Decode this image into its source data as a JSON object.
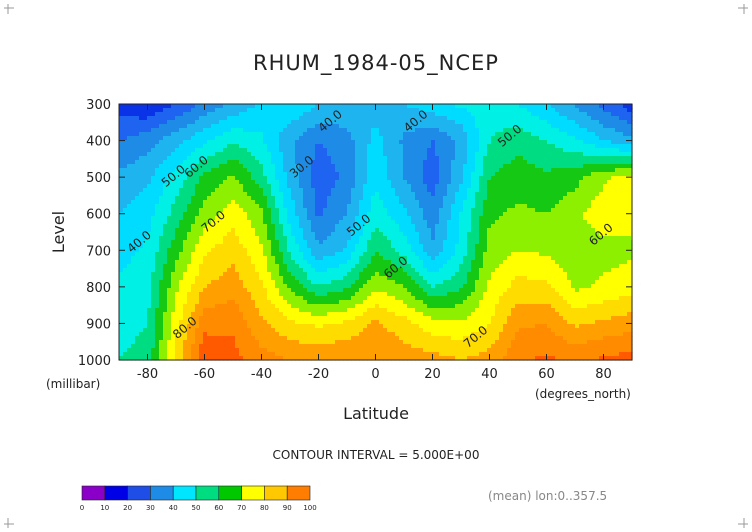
{
  "chart_data": {
    "type": "contour",
    "title": "RHUM_1984-05_NCEP",
    "xlabel": "Latitude",
    "x_units": "(degrees_north)",
    "ylabel": "Level",
    "y_units": "(millibar)",
    "xlim": [
      -90,
      90
    ],
    "ylim": [
      1000,
      300
    ],
    "x_ticks": [
      -80,
      -60,
      -40,
      -20,
      0,
      20,
      40,
      60,
      80
    ],
    "y_ticks": [
      300,
      400,
      500,
      600,
      700,
      800,
      900,
      1000
    ],
    "x_tick_labels": [
      "-80",
      "-60",
      "-40",
      "-20",
      "0",
      "20",
      "40",
      "60",
      "80"
    ],
    "y_tick_labels": [
      "300",
      "400",
      "500",
      "600",
      "700",
      "800",
      "900",
      "1000"
    ],
    "contour_interval_text": "CONTOUR INTERVAL = 5.000E+00",
    "footer_note": "(mean) lon:0..357.5",
    "contour_labels": [
      {
        "text": "40.0",
        "lat": -15,
        "level": 355
      },
      {
        "text": "40.0",
        "lat": 15,
        "level": 355
      },
      {
        "text": "50.0",
        "lat": 48,
        "level": 395
      },
      {
        "text": "30.0",
        "lat": -25,
        "level": 480
      },
      {
        "text": "50.0",
        "lat": -70,
        "level": 505
      },
      {
        "text": "60.0",
        "lat": -62,
        "level": 480
      },
      {
        "text": "70.0",
        "lat": -56,
        "level": 630
      },
      {
        "text": "50.0",
        "lat": -5,
        "level": 640
      },
      {
        "text": "60.0",
        "lat": 80,
        "level": 665
      },
      {
        "text": "40.0",
        "lat": -82,
        "level": 685
      },
      {
        "text": "60.0",
        "lat": 8,
        "level": 755
      },
      {
        "text": "80.0",
        "lat": -66,
        "level": 920
      },
      {
        "text": "70.0",
        "lat": 36,
        "level": 945
      }
    ],
    "legend": {
      "levels": [
        0,
        10,
        20,
        30,
        40,
        50,
        60,
        70,
        80,
        90,
        100
      ],
      "colors": [
        "#8a00c8",
        "#0000e6",
        "#1e4ee6",
        "#1e8ce6",
        "#00e6ff",
        "#00dc80",
        "#00c800",
        "#ffff00",
        "#ffc800",
        "#ff7d00",
        "#ff0000"
      ]
    },
    "color_scale": [
      {
        "min": 0,
        "max": 10,
        "color": "#8a00c8"
      },
      {
        "min": 10,
        "max": 20,
        "color": "#0000e6"
      },
      {
        "min": 20,
        "max": 25,
        "color": "#0a32e6"
      },
      {
        "min": 25,
        "max": 30,
        "color": "#1e64f0"
      },
      {
        "min": 30,
        "max": 35,
        "color": "#1e8ce6"
      },
      {
        "min": 35,
        "max": 40,
        "color": "#1eb4f0"
      },
      {
        "min": 40,
        "max": 45,
        "color": "#00dcff"
      },
      {
        "min": 45,
        "max": 50,
        "color": "#00f0e6"
      },
      {
        "min": 50,
        "max": 55,
        "color": "#00dc82"
      },
      {
        "min": 55,
        "max": 60,
        "color": "#14c814"
      },
      {
        "min": 60,
        "max": 65,
        "color": "#8cf000"
      },
      {
        "min": 65,
        "max": 70,
        "color": "#ffff00"
      },
      {
        "min": 70,
        "max": 75,
        "color": "#ffdc00"
      },
      {
        "min": 75,
        "max": 80,
        "color": "#ffa000"
      },
      {
        "min": 80,
        "max": 85,
        "color": "#ff8c00"
      },
      {
        "min": 85,
        "max": 90,
        "color": "#ff5a00"
      },
      {
        "min": 90,
        "max": 100,
        "color": "#ff0000"
      }
    ],
    "grid": {
      "lats": [
        -90,
        -80,
        -70,
        -60,
        -50,
        -40,
        -30,
        -20,
        -10,
        0,
        10,
        20,
        30,
        40,
        50,
        60,
        70,
        80,
        90
      ],
      "levels": [
        300,
        400,
        500,
        600,
        700,
        800,
        900,
        1000
      ],
      "values": [
        [
          22,
          20,
          25,
          31,
          36,
          41,
          45,
          40,
          39,
          37,
          40,
          43,
          46,
          48,
          45,
          40,
          34,
          28,
          22
        ],
        [
          30,
          33,
          38,
          44,
          49,
          46,
          36,
          30,
          33,
          42,
          34,
          30,
          36,
          50,
          53,
          50,
          46,
          40,
          36
        ],
        [
          36,
          39,
          47,
          56,
          61,
          52,
          38,
          27,
          31,
          44,
          35,
          27,
          39,
          55,
          58,
          56,
          58,
          64,
          67
        ],
        [
          40,
          43,
          52,
          62,
          68,
          61,
          43,
          29,
          35,
          48,
          41,
          32,
          45,
          59,
          61,
          60,
          64,
          68,
          67
        ],
        [
          43,
          46,
          58,
          69,
          73,
          66,
          49,
          36,
          41,
          55,
          48,
          36,
          47,
          62,
          65,
          64,
          62,
          63,
          64
        ],
        [
          46,
          48,
          64,
          75,
          78,
          71,
          59,
          50,
          54,
          64,
          60,
          50,
          54,
          66,
          72,
          71,
          64,
          66,
          68
        ],
        [
          48,
          50,
          68,
          83,
          84,
          76,
          71,
          69,
          71,
          76,
          72,
          67,
          66,
          70,
          79,
          80,
          74,
          76,
          78
        ],
        [
          50,
          52,
          72,
          90,
          87,
          82,
          80,
          79,
          80,
          80,
          78,
          77,
          75,
          77,
          84,
          86,
          84,
          86,
          87
        ]
      ]
    }
  }
}
